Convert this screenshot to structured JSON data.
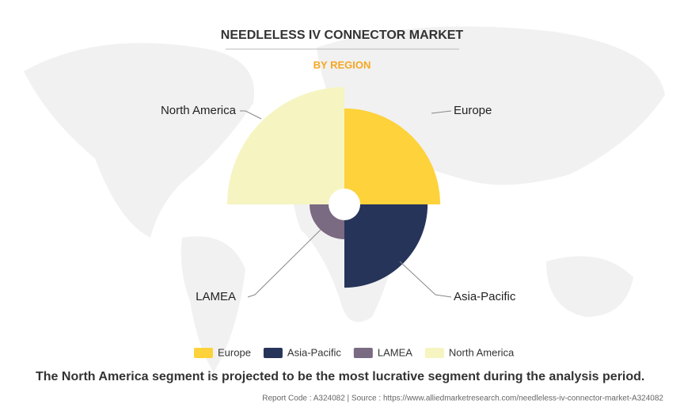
{
  "chart_data": {
    "type": "polar_area",
    "title": "NEEDLELESS IV CONNECTOR MARKET",
    "subtitle": "BY REGION",
    "categories": [
      "Europe",
      "Asia-Pacific",
      "LAMEA",
      "North America"
    ],
    "values": [
      29.6,
      22.3,
      3.9,
      44.2
    ],
    "colors": [
      "#fdd23a",
      "#26345a",
      "#7a6a82",
      "#f6f4c1"
    ],
    "caption": "The North America segment is projected to be the most lucrative segment during the analysis period.",
    "footer": "Report Code : A324082  |  Source : https://www.alliedmarketresearch.com/needleless-iv-connector-market-A324082"
  }
}
